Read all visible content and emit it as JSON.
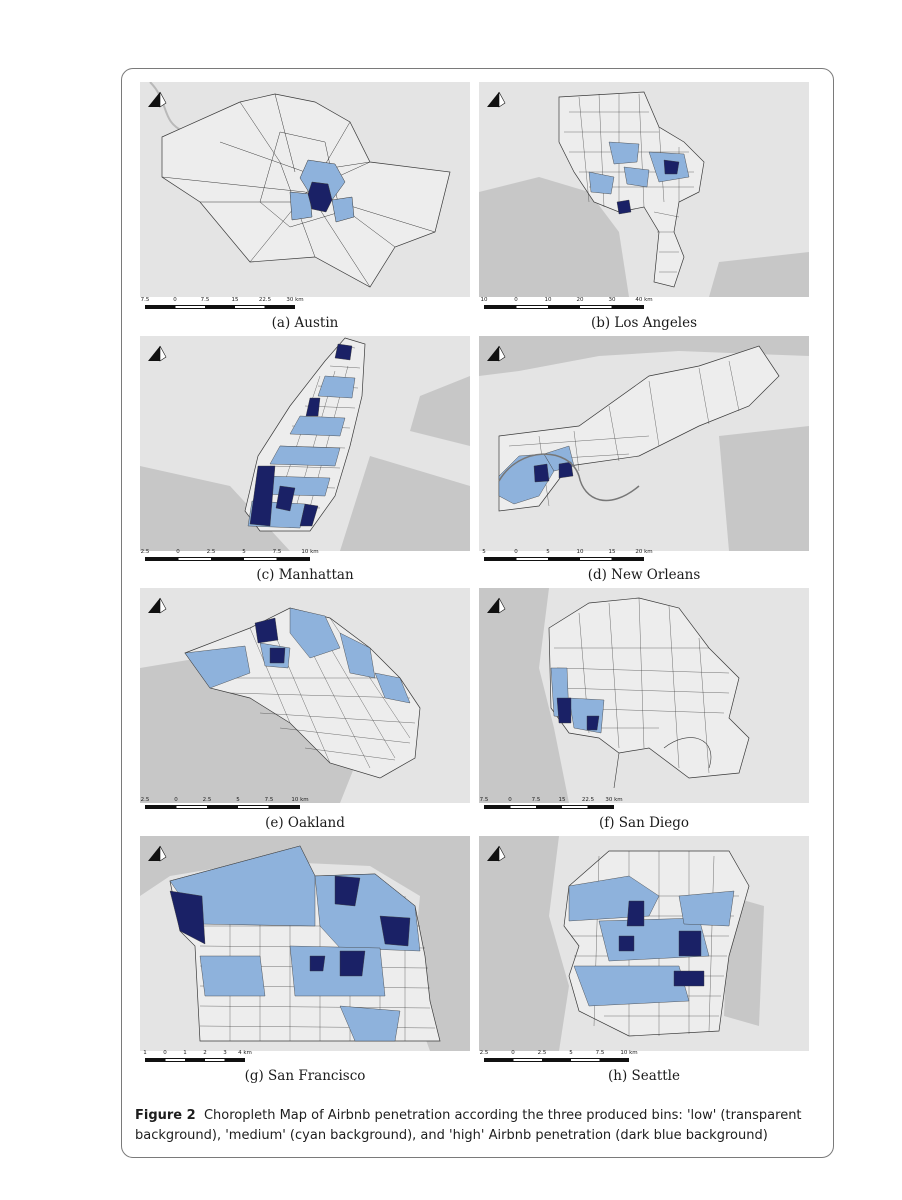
{
  "figure": {
    "label": "Figure 2",
    "caption": "Choropleth Map of Airbnb penetration according the three produced bins: 'low' (transparent background), 'medium' (cyan background), and 'high' Airbnb penetration (dark blue background)"
  },
  "legend_bins": [
    {
      "name": "low",
      "fill": "transparent"
    },
    {
      "name": "medium",
      "fill": "#8eb2dc"
    },
    {
      "name": "high",
      "fill": "#1a2166"
    }
  ],
  "colors": {
    "map_background": "#e4e4e4",
    "water": "#c7c7c7",
    "boundary": "#3a3a3a"
  },
  "icons": {
    "north_arrow": "north-arrow-icon"
  },
  "panels": [
    {
      "id": "austin",
      "caption": "(a) Austin",
      "scale_labels": [
        "7.5",
        "0",
        "7.5",
        "15",
        "22.5",
        "30 km"
      ]
    },
    {
      "id": "los-angeles",
      "caption": "(b) Los Angeles",
      "scale_labels": [
        "10",
        "0",
        "10",
        "20",
        "30",
        "40 km"
      ]
    },
    {
      "id": "manhattan",
      "caption": "(c) Manhattan",
      "scale_labels": [
        "2.5",
        "0",
        "2.5",
        "5",
        "7.5",
        "10 km"
      ]
    },
    {
      "id": "new-orleans",
      "caption": "(d) New Orleans",
      "scale_labels": [
        "5",
        "0",
        "5",
        "10",
        "15",
        "20 km"
      ]
    },
    {
      "id": "oakland",
      "caption": "(e) Oakland",
      "scale_labels": [
        "2.5",
        "0",
        "2.5",
        "5",
        "7.5",
        "10 km"
      ]
    },
    {
      "id": "san-diego",
      "caption": "(f) San Diego",
      "scale_labels": [
        "7.5",
        "0",
        "7.5",
        "15",
        "22.5",
        "30 km"
      ]
    },
    {
      "id": "san-francisco",
      "caption": "(g) San Francisco",
      "scale_labels": [
        "1",
        "0",
        "1",
        "2",
        "3",
        "4 km"
      ]
    },
    {
      "id": "seattle",
      "caption": "(h) Seattle",
      "scale_labels": [
        "2.5",
        "0",
        "2.5",
        "5",
        "7.5",
        "10 km"
      ]
    }
  ]
}
